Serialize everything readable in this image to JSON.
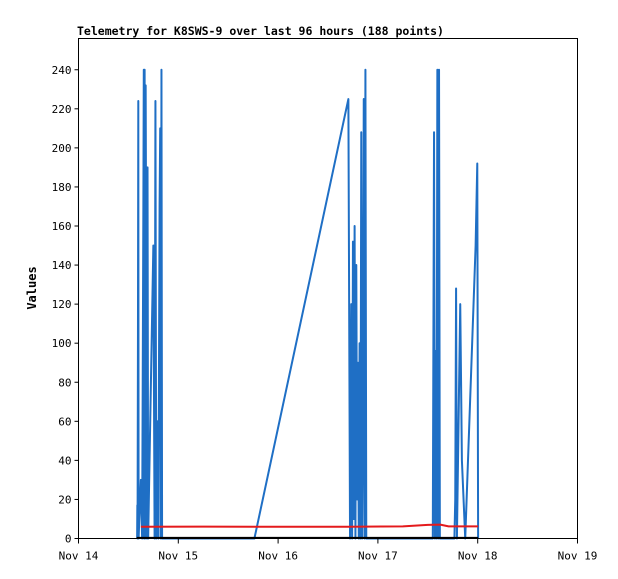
{
  "chart_data": {
    "type": "line",
    "title": "Telemetry for K8SWS-9 over last 96 hours (188 points)",
    "xlabel": "",
    "ylabel": "Values",
    "x_axis": {
      "unit": "hours since Nov 14 00:00",
      "range": [
        0,
        120
      ],
      "tick_values": [
        0,
        24,
        48,
        72,
        96,
        120
      ],
      "tick_labels": [
        "Nov 14",
        "Nov 15",
        "Nov 16",
        "Nov 17",
        "Nov 18",
        "Nov 19"
      ]
    },
    "y_axis": {
      "range": [
        0,
        256
      ],
      "ticks": [
        0,
        20,
        40,
        60,
        80,
        100,
        120,
        140,
        160,
        180,
        200,
        220,
        240
      ]
    },
    "grid": false,
    "legend": "none",
    "colors": {
      "blue": "#1f6fc5",
      "red": "#e41a1c",
      "black": "#000000"
    },
    "series": [
      {
        "color": "#1f6fc5",
        "points": [
          [
            14.1,
            0
          ],
          [
            14.15,
            17
          ],
          [
            14.2,
            0
          ],
          [
            14.3,
            104
          ],
          [
            14.38,
            224
          ],
          [
            14.45,
            0
          ],
          [
            15.0,
            30
          ],
          [
            15.3,
            0
          ],
          [
            15.6,
            170
          ],
          [
            15.7,
            240
          ],
          [
            15.78,
            0
          ],
          [
            15.9,
            240
          ],
          [
            16.0,
            0
          ],
          [
            16.15,
            232
          ],
          [
            16.3,
            125
          ],
          [
            16.45,
            0
          ],
          [
            16.6,
            190
          ],
          [
            16.75,
            0
          ],
          [
            18.0,
            150
          ],
          [
            18.3,
            0
          ],
          [
            18.5,
            224
          ],
          [
            18.7,
            0
          ],
          [
            19.0,
            60
          ],
          [
            19.2,
            0
          ],
          [
            19.5,
            170
          ],
          [
            19.65,
            210
          ],
          [
            19.8,
            0
          ],
          [
            19.95,
            240
          ],
          [
            20.1,
            0
          ],
          [
            42.3,
            0
          ],
          [
            64.9,
            225
          ],
          [
            65.1,
            112
          ],
          [
            65.3,
            0
          ],
          [
            65.6,
            120
          ],
          [
            65.8,
            0
          ],
          [
            66.0,
            152
          ],
          [
            66.2,
            10
          ],
          [
            66.4,
            160
          ],
          [
            66.6,
            0
          ],
          [
            66.8,
            140
          ],
          [
            67.0,
            20
          ],
          [
            67.2,
            90
          ],
          [
            67.4,
            0
          ],
          [
            67.6,
            100
          ],
          [
            67.8,
            0
          ],
          [
            68.0,
            208
          ],
          [
            68.2,
            0
          ],
          [
            68.4,
            60
          ],
          [
            68.6,
            225
          ],
          [
            68.8,
            0
          ],
          [
            69.0,
            240
          ],
          [
            69.2,
            0
          ],
          [
            85.2,
            0
          ],
          [
            85.5,
            208
          ],
          [
            85.7,
            0
          ],
          [
            85.9,
            96
          ],
          [
            86.1,
            0
          ],
          [
            86.3,
            240
          ],
          [
            86.5,
            0
          ],
          [
            86.7,
            240
          ],
          [
            86.9,
            0
          ],
          [
            90.4,
            0
          ],
          [
            90.6,
            20
          ],
          [
            90.8,
            128
          ],
          [
            91.0,
            0
          ],
          [
            91.4,
            60
          ],
          [
            91.8,
            120
          ],
          [
            92.2,
            40
          ],
          [
            93.0,
            0
          ],
          [
            95.5,
            150
          ],
          [
            95.9,
            192
          ],
          [
            96.1,
            0
          ]
        ]
      },
      {
        "color": "#e41a1c",
        "points": [
          [
            15.0,
            6.0
          ],
          [
            30.0,
            6.1
          ],
          [
            50.0,
            6.0
          ],
          [
            65.0,
            6.0
          ],
          [
            78.0,
            6.2
          ],
          [
            84.0,
            7.0
          ],
          [
            87.0,
            7.1
          ],
          [
            89.0,
            6.2
          ],
          [
            96.1,
            6.2
          ]
        ]
      },
      {
        "color": "#000000",
        "points": [
          [
            14.0,
            0.3
          ],
          [
            96.1,
            0.3
          ]
        ]
      }
    ]
  }
}
